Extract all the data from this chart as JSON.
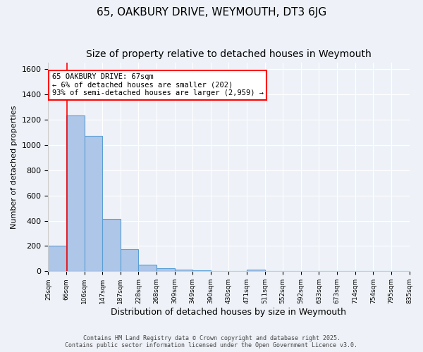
{
  "title1": "65, OAKBURY DRIVE, WEYMOUTH, DT3 6JG",
  "title2": "Size of property relative to detached houses in Weymouth",
  "xlabel": "Distribution of detached houses by size in Weymouth",
  "ylabel": "Number of detached properties",
  "bin_labels": [
    "25sqm",
    "66sqm",
    "106sqm",
    "147sqm",
    "187sqm",
    "228sqm",
    "268sqm",
    "309sqm",
    "349sqm",
    "390sqm",
    "430sqm",
    "471sqm",
    "511sqm",
    "552sqm",
    "592sqm",
    "633sqm",
    "673sqm",
    "714sqm",
    "754sqm",
    "795sqm",
    "835sqm"
  ],
  "bar_heights": [
    202,
    1232,
    1070,
    415,
    175,
    50,
    25,
    15,
    10,
    0,
    0,
    15,
    0,
    0,
    0,
    0,
    0,
    0,
    0,
    0
  ],
  "bar_color": "#aec6e8",
  "bar_edge_color": "#5a9fd4",
  "ylim": [
    0,
    1650
  ],
  "yticks": [
    0,
    200,
    400,
    600,
    800,
    1000,
    1200,
    1400,
    1600
  ],
  "red_line_x": 67,
  "annotation_title": "65 OAKBURY DRIVE: 67sqm",
  "annotation_line2": "← 6% of detached houses are smaller (202)",
  "annotation_line3": "93% of semi-detached houses are larger (2,959) →",
  "footnote1": "Contains HM Land Registry data © Crown copyright and database right 2025.",
  "footnote2": "Contains public sector information licensed under the Open Government Licence v3.0.",
  "bg_color": "#eef2f8",
  "grid_color": "#ffffff",
  "title_fontsize": 11,
  "subtitle_fontsize": 10
}
